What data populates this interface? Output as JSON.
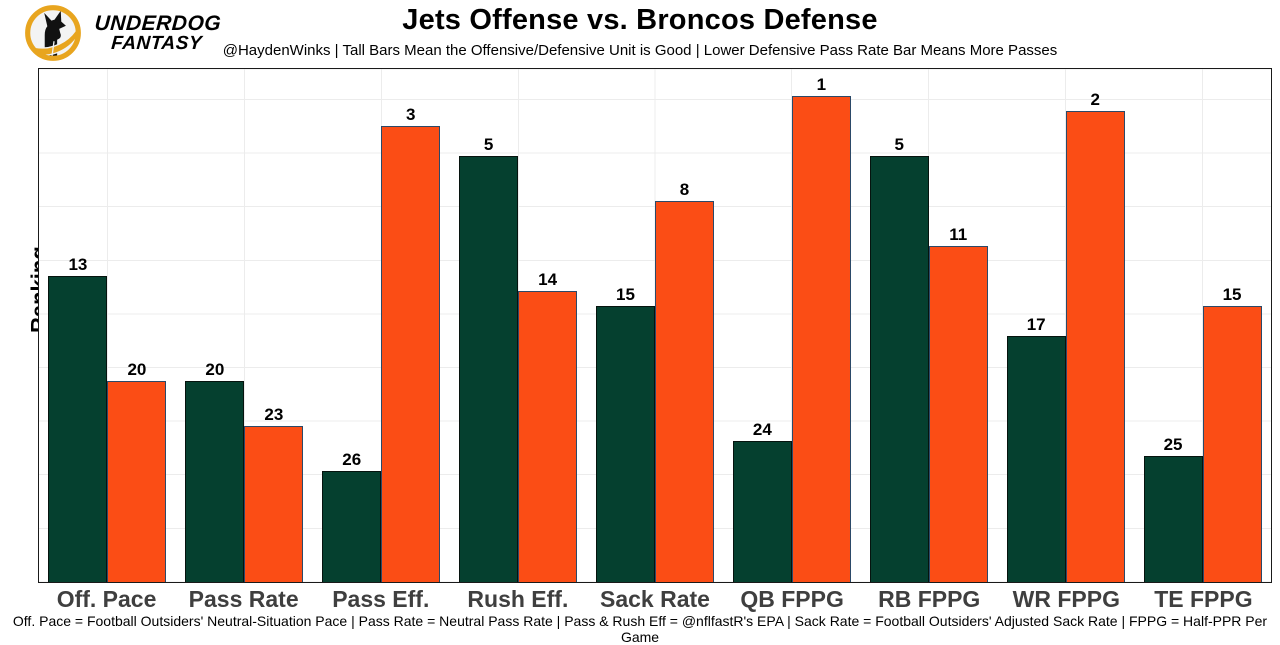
{
  "branding": {
    "logo_line1": "UNDERDOG",
    "logo_line2": "FANTASY",
    "ring_color": "#E8A51F",
    "dog_color": "#111111"
  },
  "header": {
    "title": "Jets Offense vs. Broncos Defense",
    "subtitle": "@HaydenWinks | Tall Bars Mean the Offensive/Defensive Unit is Good | Lower Defensive Pass Rate Bar Means More Passes"
  },
  "footer": {
    "note": "Off. Pace = Football Outsiders' Neutral-Situation Pace | Pass Rate = Neutral Pass Rate | Pass & Rush Eff = @nflfastR's EPA | Sack Rate = Football Outsiders' Adjusted Sack Rate | FPPG = Half-PPR Per Game"
  },
  "chart_data": {
    "type": "bar",
    "title": "Jets Offense vs. Broncos Defense",
    "subtitle": "@HaydenWinks | Tall Bars Mean the Offensive/Defensive Unit is Good | Lower Defensive Pass Rate Bar Means More Passes",
    "xlabel": "",
    "ylabel": "Ranking",
    "categories": [
      "Off. Pace",
      "Pass Rate",
      "Pass Eff.",
      "Rush Eff.",
      "Sack Rate",
      "QB FPPG",
      "RB FPPG",
      "WR FPPG",
      "TE FPPG"
    ],
    "series": [
      {
        "name": "Jets Offense",
        "color": "#05402F",
        "values": [
          13,
          20,
          26,
          5,
          15,
          24,
          5,
          17,
          25
        ]
      },
      {
        "name": "Broncos Defense",
        "color": "#FB4D15",
        "values": [
          20,
          23,
          3,
          14,
          8,
          1,
          11,
          2,
          15
        ]
      }
    ],
    "value_labels_shown": true,
    "bar_height_rule": "values are NFL rankings (1 = best); bar height = 33 - rank, so rank 1 is tallest",
    "ylim": [
      0,
      33
    ],
    "y_tick_labels": "none",
    "grid": true,
    "legend": "none"
  }
}
